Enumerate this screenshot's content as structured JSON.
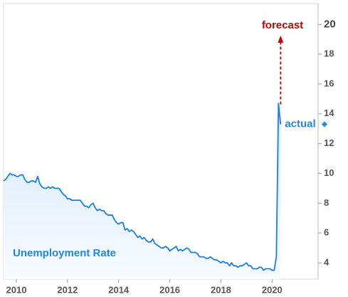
{
  "chart_data": {
    "type": "line",
    "x": [
      2009.5,
      2009.583,
      2009.667,
      2009.75,
      2009.833,
      2009.917,
      2010,
      2010.083,
      2010.167,
      2010.25,
      2010.333,
      2010.417,
      2010.5,
      2010.583,
      2010.667,
      2010.75,
      2010.833,
      2010.917,
      2011,
      2011.083,
      2011.167,
      2011.25,
      2011.333,
      2011.417,
      2011.5,
      2011.583,
      2011.667,
      2011.75,
      2011.833,
      2011.917,
      2012,
      2012.083,
      2012.167,
      2012.25,
      2012.333,
      2012.417,
      2012.5,
      2012.583,
      2012.667,
      2012.75,
      2012.833,
      2012.917,
      2013,
      2013.083,
      2013.167,
      2013.25,
      2013.333,
      2013.417,
      2013.5,
      2013.583,
      2013.667,
      2013.75,
      2013.833,
      2013.917,
      2014,
      2014.083,
      2014.167,
      2014.25,
      2014.333,
      2014.417,
      2014.5,
      2014.583,
      2014.667,
      2014.75,
      2014.833,
      2014.917,
      2015,
      2015.083,
      2015.167,
      2015.25,
      2015.333,
      2015.417,
      2015.5,
      2015.583,
      2015.667,
      2015.75,
      2015.833,
      2015.917,
      2016,
      2016.083,
      2016.167,
      2016.25,
      2016.333,
      2016.417,
      2016.5,
      2016.583,
      2016.667,
      2016.75,
      2016.833,
      2016.917,
      2017,
      2017.083,
      2017.167,
      2017.25,
      2017.333,
      2017.417,
      2017.5,
      2017.583,
      2017.667,
      2017.75,
      2017.833,
      2017.917,
      2018,
      2018.083,
      2018.167,
      2018.25,
      2018.333,
      2018.417,
      2018.5,
      2018.583,
      2018.667,
      2018.75,
      2018.833,
      2018.917,
      2019,
      2019.083,
      2019.167,
      2019.25,
      2019.333,
      2019.417,
      2019.5,
      2019.583,
      2019.667,
      2019.75,
      2019.833,
      2019.917,
      2020,
      2020.083,
      2020.167,
      2020.25,
      2020.333
    ],
    "values": [
      9.5,
      9.6,
      9.8,
      10.0,
      9.9,
      9.9,
      9.8,
      9.8,
      9.9,
      9.9,
      9.6,
      9.4,
      9.4,
      9.5,
      9.5,
      9.4,
      9.8,
      9.3,
      9.1,
      9.0,
      9.0,
      9.1,
      9.0,
      9.1,
      9.0,
      9.0,
      9.0,
      8.8,
      8.6,
      8.5,
      8.3,
      8.3,
      8.2,
      8.2,
      8.2,
      8.2,
      8.2,
      8.0,
      7.8,
      7.8,
      7.7,
      7.9,
      8.0,
      7.7,
      7.5,
      7.6,
      7.5,
      7.5,
      7.3,
      7.2,
      7.2,
      7.2,
      6.9,
      6.7,
      6.6,
      6.7,
      6.7,
      6.2,
      6.3,
      6.1,
      6.2,
      6.1,
      5.9,
      5.7,
      5.8,
      5.6,
      5.7,
      5.5,
      5.4,
      5.4,
      5.6,
      5.3,
      5.2,
      5.1,
      5.0,
      5.0,
      5.1,
      5.0,
      4.8,
      4.9,
      5.0,
      5.1,
      4.8,
      4.9,
      4.8,
      4.9,
      5.0,
      4.9,
      4.7,
      4.7,
      4.7,
      4.6,
      4.4,
      4.4,
      4.4,
      4.3,
      4.3,
      4.4,
      4.3,
      4.2,
      4.2,
      4.1,
      4.0,
      4.1,
      4.0,
      4.0,
      3.8,
      4.0,
      3.8,
      3.8,
      3.7,
      3.8,
      3.8,
      3.9,
      4.0,
      3.8,
      3.8,
      3.6,
      3.6,
      3.6,
      3.7,
      3.7,
      3.5,
      3.6,
      3.6,
      3.6,
      3.5,
      3.5,
      4.4,
      14.7,
      13.3
    ],
    "color": "#1a7fe0",
    "xlim": [
      2009.5,
      2021.8
    ],
    "xticks": [
      2010,
      2012,
      2014,
      2016,
      2018,
      2020
    ],
    "ylim": [
      2.9,
      21.4
    ],
    "yticks": [
      4,
      6,
      8,
      10,
      12,
      14,
      16,
      18,
      20
    ],
    "annotations": {
      "series_label": "Unemployment Rate",
      "forecast": "forecast",
      "actual": "actual"
    },
    "annotation_colors": {
      "forecast": "#cc0000",
      "actual": "#1e88e5"
    }
  }
}
